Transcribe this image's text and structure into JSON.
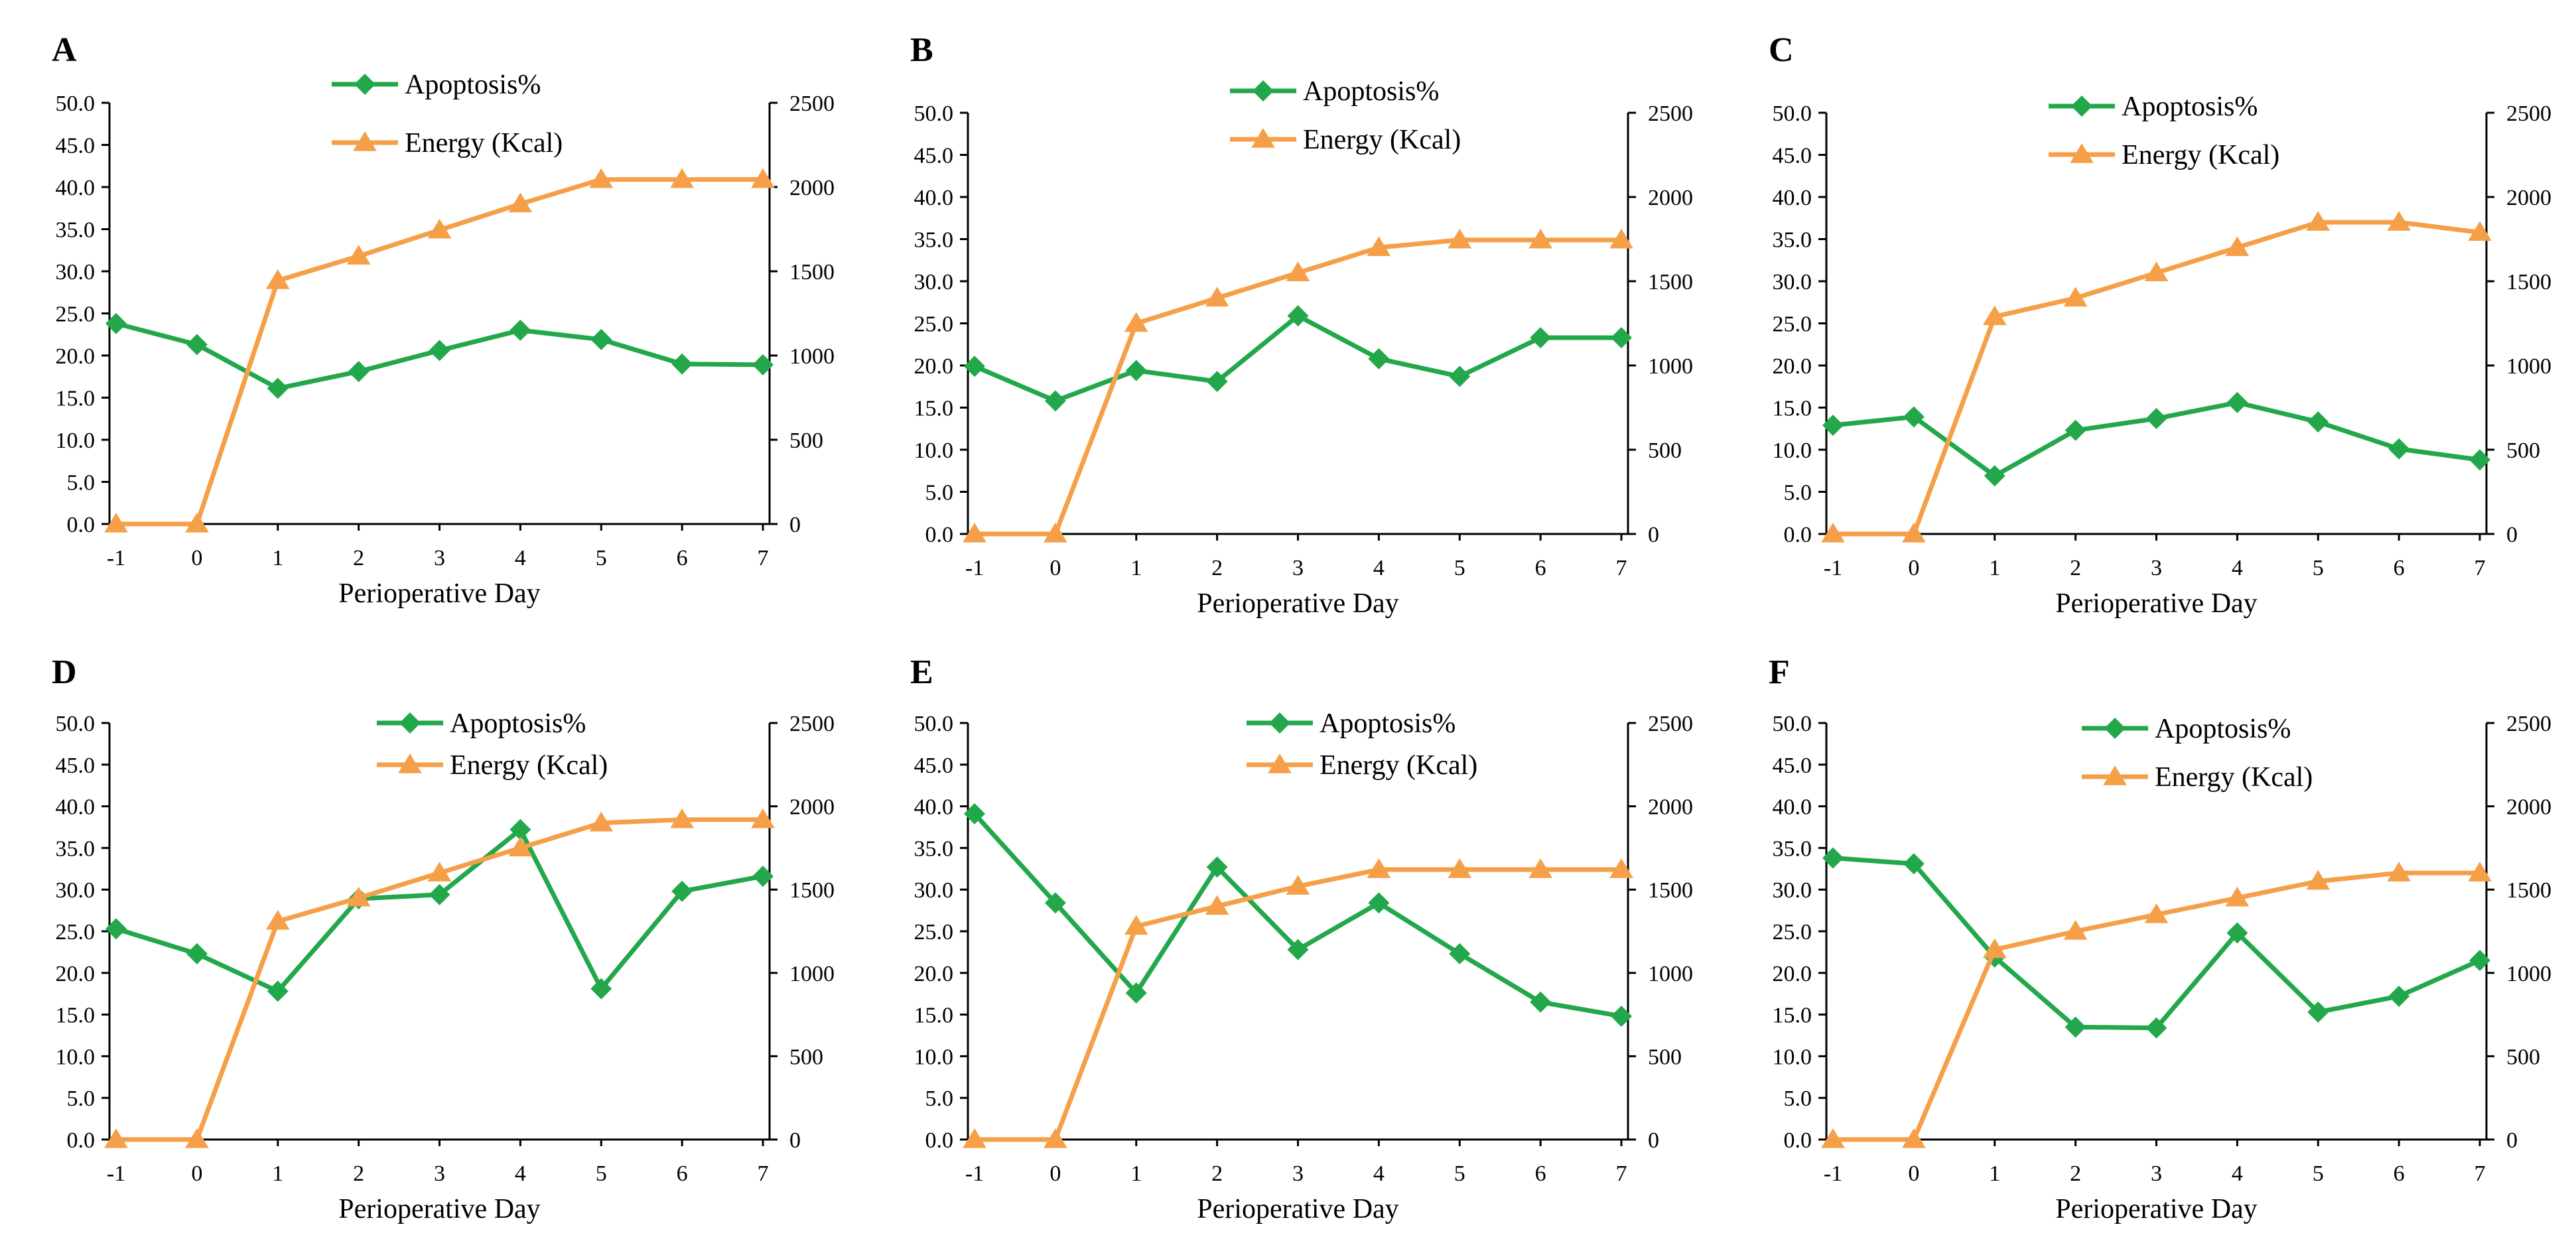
{
  "figure": {
    "colors": {
      "apoptosis": "#22a84a",
      "energy": "#f5a049",
      "axis": "#000000"
    }
  },
  "chart_data": [
    {
      "type": "line",
      "panel": "A",
      "x": [
        "-1",
        "0",
        "1",
        "2",
        "3",
        "4",
        "5",
        "6",
        "7"
      ],
      "xlabel": "Perioperative Day",
      "y_left_ticks": [
        "0.0",
        "5.0",
        "10.0",
        "15.0",
        "20.0",
        "25.0",
        "30.0",
        "35.0",
        "40.0",
        "45.0",
        "50.0"
      ],
      "y_right_ticks": [
        "0",
        "500",
        "1000",
        "1500",
        "2000",
        "2500"
      ],
      "ylim_left": [
        0,
        50
      ],
      "ylim_right": [
        0,
        2500
      ],
      "series": [
        {
          "name": "Apoptosis%",
          "axis": "left",
          "values": [
            23.8,
            21.3,
            16.1,
            18.1,
            20.6,
            23.0,
            21.9,
            19.0,
            18.9
          ]
        },
        {
          "name": "Energy (Kcal)",
          "axis": "right",
          "values": [
            0,
            0,
            1445,
            1590,
            1745,
            1900,
            2045,
            2045,
            2045
          ]
        }
      ]
    },
    {
      "type": "line",
      "panel": "B",
      "x": [
        "-1",
        "0",
        "1",
        "2",
        "3",
        "4",
        "5",
        "6",
        "7"
      ],
      "xlabel": "Perioperative Day",
      "y_left_ticks": [
        "0.0",
        "5.0",
        "10.0",
        "15.0",
        "20.0",
        "25.0",
        "30.0",
        "35.0",
        "40.0",
        "45.0",
        "50.0"
      ],
      "y_right_ticks": [
        "0",
        "500",
        "1000",
        "1500",
        "2000",
        "2500"
      ],
      "ylim_left": [
        0,
        50
      ],
      "ylim_right": [
        0,
        2500
      ],
      "series": [
        {
          "name": "Apoptosis%",
          "axis": "left",
          "values": [
            19.9,
            15.8,
            19.4,
            18.1,
            25.9,
            20.8,
            18.7,
            23.3,
            23.3
          ]
        },
        {
          "name": "Energy (Kcal)",
          "axis": "right",
          "values": [
            0,
            0,
            1250,
            1400,
            1550,
            1700,
            1745,
            1745,
            1745
          ]
        }
      ]
    },
    {
      "type": "line",
      "panel": "C",
      "x": [
        "-1",
        "0",
        "1",
        "2",
        "3",
        "4",
        "5",
        "6",
        "7"
      ],
      "xlabel": "Perioperative Day",
      "y_left_ticks": [
        "0.0",
        "5.0",
        "10.0",
        "15.0",
        "20.0",
        "25.0",
        "30.0",
        "35.0",
        "40.0",
        "45.0",
        "50.0"
      ],
      "y_right_ticks": [
        "0",
        "500",
        "1000",
        "1500",
        "2000",
        "2500"
      ],
      "ylim_left": [
        0,
        50
      ],
      "ylim_right": [
        0,
        2500
      ],
      "series": [
        {
          "name": "Apoptosis%",
          "axis": "left",
          "values": [
            12.9,
            13.9,
            6.9,
            12.3,
            13.7,
            15.6,
            13.3,
            10.1,
            8.8
          ]
        },
        {
          "name": "Energy (Kcal)",
          "axis": "right",
          "values": [
            0,
            0,
            1290,
            1400,
            1550,
            1700,
            1850,
            1850,
            1790
          ]
        }
      ]
    },
    {
      "type": "line",
      "panel": "D",
      "x": [
        "-1",
        "0",
        "1",
        "2",
        "3",
        "4",
        "5",
        "6",
        "7"
      ],
      "xlabel": "Perioperative Day",
      "y_left_ticks": [
        "0.0",
        "5.0",
        "10.0",
        "15.0",
        "20.0",
        "25.0",
        "30.0",
        "35.0",
        "40.0",
        "45.0",
        "50.0"
      ],
      "y_right_ticks": [
        "0",
        "500",
        "1000",
        "1500",
        "2000",
        "2500"
      ],
      "ylim_left": [
        0,
        50
      ],
      "ylim_right": [
        0,
        2500
      ],
      "series": [
        {
          "name": "Apoptosis%",
          "axis": "left",
          "values": [
            25.3,
            22.3,
            17.8,
            28.9,
            29.4,
            37.2,
            18.1,
            29.8,
            31.6
          ]
        },
        {
          "name": "Energy (Kcal)",
          "axis": "right",
          "values": [
            0,
            0,
            1310,
            1450,
            1600,
            1750,
            1900,
            1920,
            1920
          ]
        }
      ]
    },
    {
      "type": "line",
      "panel": "E",
      "x": [
        "-1",
        "0",
        "1",
        "2",
        "3",
        "4",
        "5",
        "6",
        "7"
      ],
      "xlabel": "Perioperative Day",
      "y_left_ticks": [
        "0.0",
        "5.0",
        "10.0",
        "15.0",
        "20.0",
        "25.0",
        "30.0",
        "35.0",
        "40.0",
        "45.0",
        "50.0"
      ],
      "y_right_ticks": [
        "0",
        "500",
        "1000",
        "1500",
        "2000",
        "2500"
      ],
      "ylim_left": [
        0,
        50
      ],
      "ylim_right": [
        0,
        2500
      ],
      "series": [
        {
          "name": "Apoptosis%",
          "axis": "left",
          "values": [
            39.1,
            28.4,
            17.6,
            32.7,
            22.8,
            28.4,
            22.3,
            16.5,
            14.8
          ]
        },
        {
          "name": "Energy (Kcal)",
          "axis": "right",
          "values": [
            0,
            0,
            1280,
            1400,
            1520,
            1620,
            1620,
            1620,
            1620
          ]
        }
      ]
    },
    {
      "type": "line",
      "panel": "F",
      "x": [
        "-1",
        "0",
        "1",
        "2",
        "3",
        "4",
        "5",
        "6",
        "7"
      ],
      "xlabel": "Perioperative Day",
      "y_left_ticks": [
        "0.0",
        "5.0",
        "10.0",
        "15.0",
        "20.0",
        "25.0",
        "30.0",
        "35.0",
        "40.0",
        "45.0",
        "50.0"
      ],
      "y_right_ticks": [
        "0",
        "500",
        "1000",
        "1500",
        "2000",
        "2500"
      ],
      "ylim_left": [
        0,
        50
      ],
      "ylim_right": [
        0,
        2500
      ],
      "series": [
        {
          "name": "Apoptosis%",
          "axis": "left",
          "values": [
            33.8,
            33.1,
            21.9,
            13.5,
            13.4,
            24.8,
            15.3,
            17.2,
            21.5
          ]
        },
        {
          "name": "Energy (Kcal)",
          "axis": "right",
          "values": [
            0,
            0,
            1140,
            1250,
            1350,
            1450,
            1550,
            1600,
            1600
          ]
        }
      ]
    }
  ]
}
